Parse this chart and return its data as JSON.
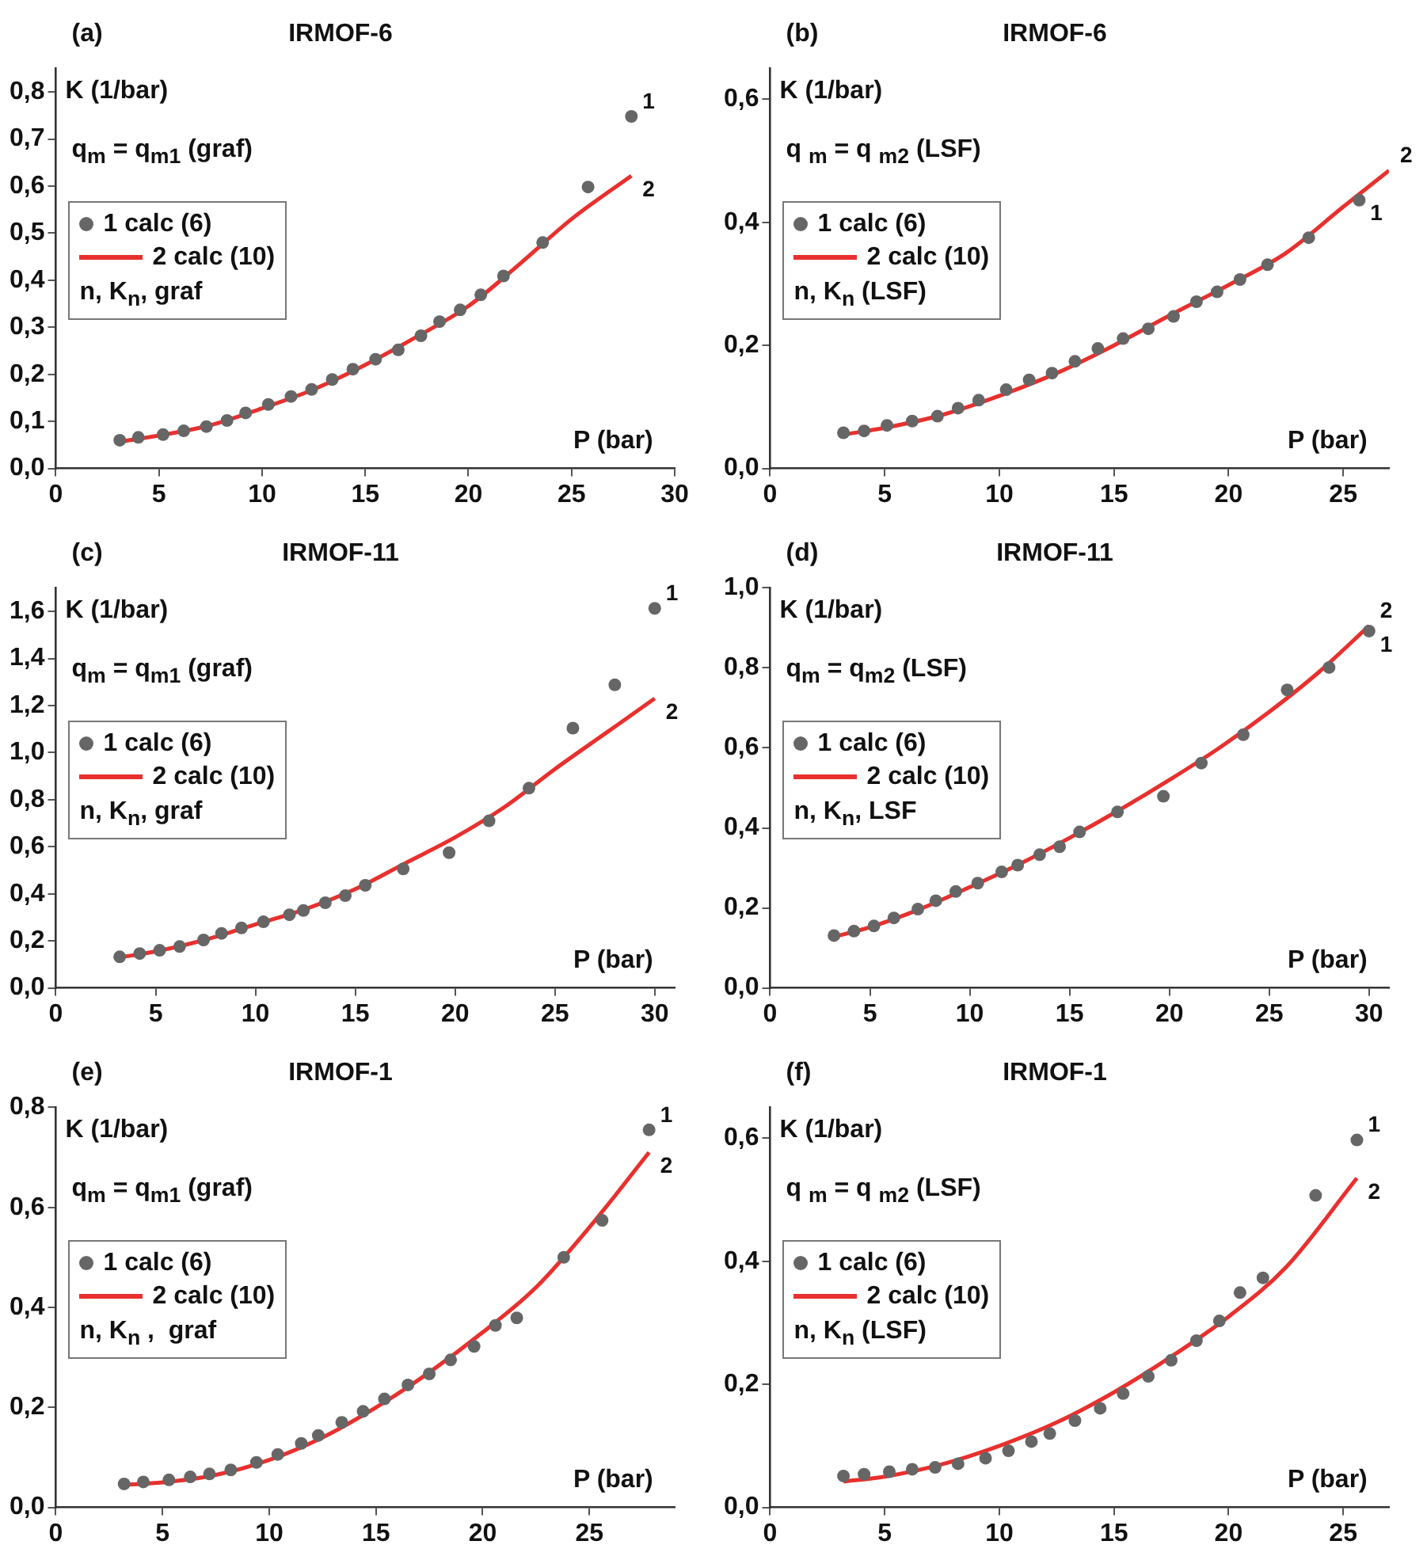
{
  "chart_data": [
    {
      "type": "scatter",
      "title": "IRMOF-6",
      "xlabel": "P (bar)",
      "ylabel": "K (1/bar)",
      "legend_title": "n, K$_{n}$, graf",
      "legend": "left",
      "marker": "circle",
      "annotations": [
        "(a)",
        "q$_{m}$ = q$_{m1}$ (graf)",
        {
          "text": "1",
          "x": 27.9,
          "y": 0.748
        },
        {
          "text": "2",
          "x": 27.9,
          "y": 0.622
        }
      ],
      "xlim": [
        0,
        30
      ],
      "xticks": [
        0,
        5,
        10,
        15,
        20,
        25,
        30
      ],
      "ylim": [
        0,
        0.85
      ],
      "yticks": [
        {
          "value": 0,
          "label": "0,0"
        },
        {
          "value": 0.1,
          "label": "0,1"
        },
        {
          "value": 0.2,
          "label": "0,2"
        },
        {
          "value": 0.3,
          "label": "0,3"
        },
        {
          "value": 0.4,
          "label": "0,4"
        },
        {
          "value": 0.5,
          "label": "0,5"
        },
        {
          "value": 0.6,
          "label": "0,6"
        },
        {
          "value": 0.7,
          "label": "0,7"
        },
        {
          "value": 0.8,
          "label": "0,8"
        }
      ],
      "series": [
        {
          "name": "1 calc (6)",
          "type": "scatter",
          "color": "#666666",
          "x": [
            3.1,
            4.0,
            5.2,
            6.2,
            7.3,
            8.3,
            9.2,
            10.3,
            11.4,
            12.4,
            13.4,
            14.4,
            15.5,
            16.6,
            17.7,
            18.6,
            19.6,
            20.6,
            21.7,
            23.6,
            25.8,
            27.9
          ],
          "values": [
            0.06,
            0.066,
            0.072,
            0.08,
            0.089,
            0.102,
            0.118,
            0.136,
            0.153,
            0.168,
            0.189,
            0.211,
            0.232,
            0.252,
            0.282,
            0.312,
            0.337,
            0.369,
            0.409,
            0.48,
            0.598,
            0.748
          ]
        },
        {
          "name": "2 calc (10)",
          "type": "line",
          "marker": "none",
          "color": "#e8302e",
          "x": [
            3.1,
            5,
            7.5,
            10,
            12.5,
            15,
            17.5,
            20,
            22.5,
            25,
            27.9
          ],
          "values": [
            0.057,
            0.07,
            0.092,
            0.128,
            0.168,
            0.22,
            0.28,
            0.345,
            0.435,
            0.53,
            0.622
          ]
        }
      ]
    },
    {
      "type": "scatter",
      "title": "IRMOF-6",
      "xlabel": "P (bar)",
      "ylabel": "K (1/bar)",
      "legend_title": "n, K$_{n}$ (LSF)",
      "legend": "left",
      "marker": "circle",
      "annotations": [
        "(b)",
        "q $_{m}$ = q $_{m2}$ (LSF)",
        {
          "text": "1",
          "x": 25.7,
          "y": 0.436
        },
        {
          "text": "2",
          "x": 27,
          "y": 0.484
        }
      ],
      "xlim": [
        0,
        27
      ],
      "xticks": [
        0,
        5,
        10,
        15,
        20,
        25
      ],
      "ylim": [
        0,
        0.65
      ],
      "yticks": [
        {
          "value": 0,
          "label": "0,0"
        },
        {
          "value": 0.2,
          "label": "0,2"
        },
        {
          "value": 0.4,
          "label": "0,4"
        },
        {
          "value": 0.6,
          "label": "0,6"
        }
      ],
      "series": [
        {
          "name": "1 calc (6)",
          "type": "scatter",
          "color": "#666666",
          "x": [
            3.2,
            4.1,
            5.1,
            6.2,
            7.3,
            8.2,
            9.1,
            10.3,
            11.3,
            12.3,
            13.3,
            14.3,
            15.4,
            16.5,
            17.6,
            18.6,
            19.5,
            20.5,
            21.7,
            23.5,
            25.7
          ],
          "values": [
            0.058,
            0.061,
            0.07,
            0.077,
            0.085,
            0.098,
            0.111,
            0.128,
            0.144,
            0.155,
            0.174,
            0.195,
            0.211,
            0.227,
            0.247,
            0.271,
            0.287,
            0.307,
            0.331,
            0.375,
            0.436
          ]
        },
        {
          "name": "2 calc (10)",
          "type": "line",
          "marker": "none",
          "color": "#e8302e",
          "x": [
            3.2,
            5,
            7.5,
            10,
            12.5,
            15,
            17.5,
            20,
            22.5,
            25,
            27
          ],
          "values": [
            0.055,
            0.066,
            0.087,
            0.118,
            0.155,
            0.2,
            0.25,
            0.298,
            0.35,
            0.425,
            0.484
          ]
        }
      ]
    },
    {
      "type": "scatter",
      "title": "IRMOF-11",
      "xlabel": "P (bar)",
      "ylabel": "K (1/bar)",
      "legend_title": "n, K$_{n}$, graf",
      "legend": "left",
      "marker": "circle",
      "annotations": [
        "(c)",
        "q$_{m}$ = q$_{m1}$ (graf)",
        {
          "text": "1",
          "x": 30,
          "y": 1.613
        },
        {
          "text": "2",
          "x": 30,
          "y": 1.23
        }
      ],
      "xlim": [
        0,
        31
      ],
      "xticks": [
        0,
        5,
        10,
        15,
        20,
        25,
        30
      ],
      "ylim": [
        0,
        1.7
      ],
      "yticks": [
        {
          "value": 0,
          "label": "0,0"
        },
        {
          "value": 0.2,
          "label": "0,2"
        },
        {
          "value": 0.4,
          "label": "0,4"
        },
        {
          "value": 0.6,
          "label": "0,6"
        },
        {
          "value": 0.8,
          "label": "0,8"
        },
        {
          "value": 1.0,
          "label": "1,0"
        },
        {
          "value": 1.2,
          "label": "1,2"
        },
        {
          "value": 1.4,
          "label": "1,4"
        },
        {
          "value": 1.6,
          "label": "1,6"
        }
      ],
      "series": [
        {
          "name": "1 calc (6)",
          "type": "scatter",
          "color": "#666666",
          "x": [
            3.2,
            4.2,
            5.2,
            6.2,
            7.4,
            8.3,
            9.3,
            10.4,
            11.7,
            12.4,
            13.5,
            14.5,
            15.5,
            17.4,
            19.7,
            21.7,
            23.7,
            25.9,
            28.0,
            30.0
          ],
          "values": [
            0.132,
            0.146,
            0.16,
            0.176,
            0.204,
            0.232,
            0.255,
            0.281,
            0.311,
            0.329,
            0.362,
            0.392,
            0.436,
            0.506,
            0.575,
            0.71,
            0.849,
            1.104,
            1.288,
            1.613
          ]
        },
        {
          "name": "2 calc (10)",
          "type": "line",
          "marker": "none",
          "color": "#e8302e",
          "x": [
            3.2,
            5,
            7.5,
            10,
            12.5,
            15,
            17.5,
            20,
            22.5,
            25,
            27.5,
            30
          ],
          "values": [
            0.13,
            0.155,
            0.205,
            0.27,
            0.335,
            0.42,
            0.53,
            0.64,
            0.77,
            0.93,
            1.08,
            1.23
          ]
        }
      ]
    },
    {
      "type": "scatter",
      "title": "IRMOF-11",
      "xlabel": "P (bar)",
      "ylabel": "K (1/bar)",
      "legend_title": "n, K$_{n}$, LSF",
      "legend": "left",
      "marker": "circle",
      "annotations": [
        "(d)",
        "q$_{m}$ = q$_{m2}$ (LSF)",
        {
          "text": "1",
          "x": 30,
          "y": 0.892
        },
        {
          "text": "2",
          "x": 30,
          "y": 0.905
        }
      ],
      "xlim": [
        0,
        31
      ],
      "xticks": [
        0,
        5,
        10,
        15,
        20,
        25,
        30
      ],
      "ylim": [
        0,
        1.0
      ],
      "yticks": [
        {
          "value": 0,
          "label": "0,0"
        },
        {
          "value": 0.2,
          "label": "0,2"
        },
        {
          "value": 0.4,
          "label": "0,4"
        },
        {
          "value": 0.6,
          "label": "0,6"
        },
        {
          "value": 0.8,
          "label": "0,8"
        },
        {
          "value": 1.0,
          "label": "1,0"
        }
      ],
      "series": [
        {
          "name": "1 calc (6)",
          "type": "scatter",
          "color": "#666666",
          "x": [
            3.2,
            4.2,
            5.2,
            6.2,
            7.4,
            8.3,
            9.3,
            10.4,
            11.6,
            12.4,
            13.5,
            14.5,
            15.5,
            17.4,
            19.7,
            21.6,
            23.7,
            25.9,
            28.0,
            30.0
          ],
          "values": [
            0.131,
            0.142,
            0.155,
            0.175,
            0.197,
            0.218,
            0.241,
            0.262,
            0.29,
            0.307,
            0.333,
            0.353,
            0.39,
            0.44,
            0.479,
            0.562,
            0.633,
            0.745,
            0.801,
            0.892
          ]
        },
        {
          "name": "2 calc (10)",
          "type": "line",
          "marker": "none",
          "color": "#e8302e",
          "x": [
            3.2,
            5,
            7.5,
            10,
            12.5,
            15,
            17.5,
            20,
            22.5,
            25,
            27.5,
            30
          ],
          "values": [
            0.128,
            0.152,
            0.197,
            0.252,
            0.31,
            0.375,
            0.445,
            0.52,
            0.6,
            0.69,
            0.79,
            0.905
          ]
        }
      ]
    },
    {
      "type": "scatter",
      "title": "IRMOF-1",
      "xlabel": "P (bar)",
      "ylabel": "K (1/bar)",
      "legend_title": "n, K$_{n}$ ,  graf",
      "legend": "left",
      "marker": "circle",
      "annotations": [
        "(e)",
        "q$_{m}$ = q$_{m1}$ (graf)",
        {
          "text": "1",
          "x": 27.8,
          "y": 0.755
        },
        {
          "text": "2",
          "x": 27.8,
          "y": 0.71
        }
      ],
      "xlim": [
        0,
        29
      ],
      "xticks": [
        0,
        5,
        10,
        15,
        20,
        25
      ],
      "ylim": [
        0,
        0.8
      ],
      "yticks": [
        {
          "value": 0,
          "label": "0,0"
        },
        {
          "value": 0.2,
          "label": "0,2"
        },
        {
          "value": 0.4,
          "label": "0,4"
        },
        {
          "value": 0.6,
          "label": "0,6"
        },
        {
          "value": 0.8,
          "label": "0,8"
        }
      ],
      "series": [
        {
          "name": "1 calc (6)",
          "type": "scatter",
          "color": "#666666",
          "x": [
            3.2,
            4.1,
            5.3,
            6.3,
            7.2,
            8.2,
            9.4,
            10.4,
            11.5,
            12.3,
            13.4,
            14.4,
            15.4,
            16.5,
            17.5,
            18.5,
            19.6,
            20.6,
            21.6,
            23.8,
            25.6,
            27.8
          ],
          "values": [
            0.047,
            0.051,
            0.055,
            0.061,
            0.067,
            0.075,
            0.09,
            0.106,
            0.128,
            0.144,
            0.17,
            0.192,
            0.217,
            0.245,
            0.267,
            0.295,
            0.322,
            0.364,
            0.379,
            0.5,
            0.574,
            0.755
          ]
        },
        {
          "name": "2 calc (10)",
          "type": "line",
          "marker": "none",
          "color": "#e8302e",
          "x": [
            3.2,
            5,
            7.5,
            10,
            12.5,
            15,
            17.5,
            20,
            22.5,
            25,
            27.8
          ],
          "values": [
            0.045,
            0.05,
            0.065,
            0.095,
            0.14,
            0.2,
            0.27,
            0.35,
            0.44,
            0.56,
            0.71
          ]
        }
      ]
    },
    {
      "type": "scatter",
      "title": "IRMOF-1",
      "xlabel": "P (bar)",
      "ylabel": "K (1/bar)",
      "legend_title": "n, K$_{n}$ (LSF)",
      "legend": "left",
      "marker": "circle",
      "annotations": [
        "(f)",
        "q $_{m}$ = q $_{m2}$ (LSF)",
        {
          "text": "1",
          "x": 25.6,
          "y": 0.597
        },
        {
          "text": "2",
          "x": 25.6,
          "y": 0.535
        }
      ],
      "xlim": [
        0,
        27
      ],
      "xticks": [
        0,
        5,
        10,
        15,
        20,
        25
      ],
      "ylim": [
        0,
        0.65
      ],
      "yticks": [
        {
          "value": 0,
          "label": "0,0"
        },
        {
          "value": 0.2,
          "label": "0,2"
        },
        {
          "value": 0.4,
          "label": "0,4"
        },
        {
          "value": 0.6,
          "label": "0,6"
        }
      ],
      "series": [
        {
          "name": "1 calc (6)",
          "type": "scatter",
          "color": "#666666",
          "x": [
            3.2,
            4.1,
            5.2,
            6.2,
            7.2,
            8.2,
            9.4,
            10.4,
            11.4,
            12.2,
            13.3,
            14.4,
            15.4,
            16.5,
            17.5,
            18.6,
            19.6,
            20.5,
            21.5,
            23.8,
            25.6
          ],
          "values": [
            0.051,
            0.054,
            0.058,
            0.062,
            0.065,
            0.071,
            0.08,
            0.092,
            0.107,
            0.12,
            0.141,
            0.161,
            0.185,
            0.213,
            0.239,
            0.271,
            0.303,
            0.349,
            0.373,
            0.507,
            0.597
          ]
        },
        {
          "name": "2 calc (10)",
          "type": "line",
          "marker": "none",
          "color": "#e8302e",
          "x": [
            3.2,
            5,
            7.5,
            10,
            12.5,
            15,
            17.5,
            20,
            22.5,
            25.6
          ],
          "values": [
            0.042,
            0.05,
            0.07,
            0.1,
            0.138,
            0.187,
            0.245,
            0.31,
            0.39,
            0.535
          ]
        }
      ]
    }
  ]
}
